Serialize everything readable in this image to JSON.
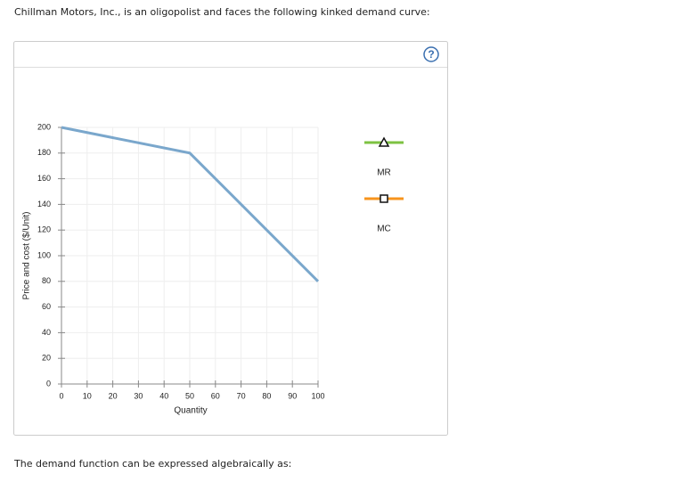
{
  "intro": "Chillman Motors, Inc., is an oligopolist and faces the following kinked demand curve:",
  "help_icon": "?",
  "footer": "The demand function can be expressed algebraically as:",
  "chart_data": {
    "type": "line",
    "x_label": "Quantity",
    "y_label": "Price and cost ($/Unit)",
    "x": [
      0,
      50,
      100
    ],
    "values": [
      200,
      180,
      80
    ],
    "color": "#7aa7cc",
    "xlim": [
      0,
      100
    ],
    "xticks": [
      0,
      10,
      20,
      30,
      40,
      50,
      60,
      70,
      80,
      90,
      100
    ],
    "ylim": [
      0,
      200
    ],
    "yticks": [
      0,
      20,
      40,
      60,
      80,
      100,
      120,
      140,
      160,
      180,
      200
    ],
    "grid": true,
    "legend": [
      {
        "name": "MR",
        "color": "#7dc242",
        "marker": "triangle"
      },
      {
        "name": "MC",
        "color": "#f7941d",
        "marker": "square"
      }
    ]
  }
}
